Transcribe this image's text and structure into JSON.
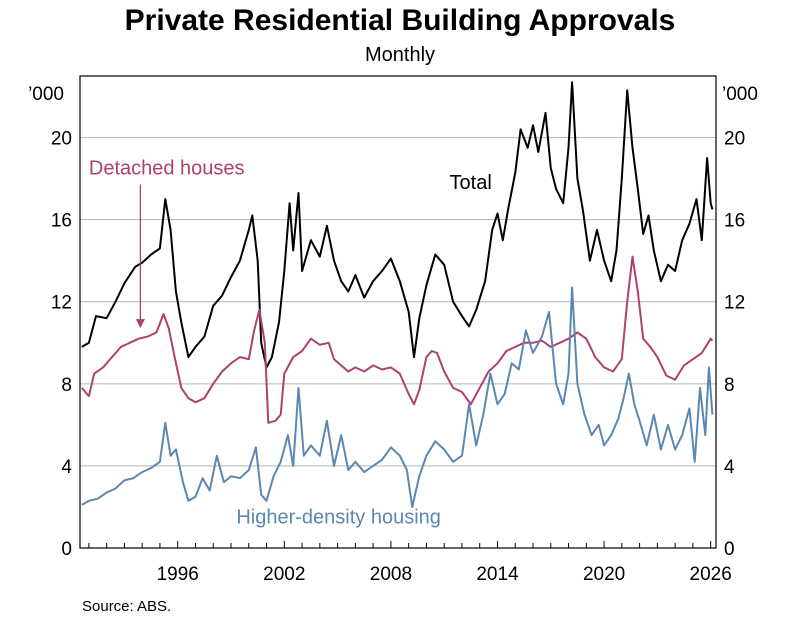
{
  "title": "Private Residential Building Approvals",
  "subtitle": "Monthly",
  "source": "Source:   ABS.",
  "chart_data": {
    "type": "line",
    "title": "Private Residential Building Approvals",
    "subtitle": "Monthly",
    "unit_left": "’000",
    "unit_right": "’000",
    "xlim": [
      1990.5,
      2026.3
    ],
    "ylim": [
      0,
      23
    ],
    "yticks": [
      0,
      4,
      8,
      12,
      16,
      20
    ],
    "xticks": [
      1996,
      2002,
      2008,
      2014,
      2020,
      2026
    ],
    "grid": true,
    "legend": "inline-labels",
    "series": [
      {
        "name": "Total",
        "color": "#000000",
        "label_x": 2011.3,
        "label_y": 17.5,
        "points": [
          [
            1990.6,
            9.8
          ],
          [
            1991.0,
            10.0
          ],
          [
            1991.4,
            11.3
          ],
          [
            1992.0,
            11.2
          ],
          [
            1992.5,
            12.0
          ],
          [
            1993.0,
            12.9
          ],
          [
            1993.6,
            13.7
          ],
          [
            1994.0,
            13.9
          ],
          [
            1994.5,
            14.3
          ],
          [
            1995.0,
            14.6
          ],
          [
            1995.3,
            17.0
          ],
          [
            1995.6,
            15.5
          ],
          [
            1995.9,
            12.5
          ],
          [
            1996.2,
            11.0
          ],
          [
            1996.6,
            9.3
          ],
          [
            1997.0,
            9.8
          ],
          [
            1997.5,
            10.3
          ],
          [
            1998.0,
            11.8
          ],
          [
            1998.5,
            12.3
          ],
          [
            1999.0,
            13.2
          ],
          [
            1999.5,
            14.0
          ],
          [
            2000.0,
            15.5
          ],
          [
            2000.2,
            16.2
          ],
          [
            2000.5,
            14.0
          ],
          [
            2000.7,
            10.0
          ],
          [
            2001.0,
            8.8
          ],
          [
            2001.3,
            9.3
          ],
          [
            2001.7,
            11.0
          ],
          [
            2002.0,
            13.5
          ],
          [
            2002.3,
            16.8
          ],
          [
            2002.5,
            14.5
          ],
          [
            2002.8,
            17.3
          ],
          [
            2003.0,
            13.5
          ],
          [
            2003.5,
            15.0
          ],
          [
            2004.0,
            14.2
          ],
          [
            2004.4,
            15.7
          ],
          [
            2004.8,
            14.0
          ],
          [
            2005.2,
            13.0
          ],
          [
            2005.6,
            12.5
          ],
          [
            2006.0,
            13.3
          ],
          [
            2006.5,
            12.2
          ],
          [
            2007.0,
            13.0
          ],
          [
            2007.5,
            13.5
          ],
          [
            2008.0,
            14.1
          ],
          [
            2008.5,
            13.0
          ],
          [
            2009.0,
            11.5
          ],
          [
            2009.3,
            9.3
          ],
          [
            2009.6,
            11.2
          ],
          [
            2010.0,
            12.8
          ],
          [
            2010.5,
            14.3
          ],
          [
            2011.0,
            13.8
          ],
          [
            2011.5,
            12.0
          ],
          [
            2012.0,
            11.3
          ],
          [
            2012.4,
            10.8
          ],
          [
            2012.8,
            11.6
          ],
          [
            2013.3,
            13.0
          ],
          [
            2013.7,
            15.5
          ],
          [
            2014.0,
            16.3
          ],
          [
            2014.3,
            15.0
          ],
          [
            2014.6,
            16.5
          ],
          [
            2015.0,
            18.3
          ],
          [
            2015.3,
            20.4
          ],
          [
            2015.7,
            19.5
          ],
          [
            2016.0,
            20.6
          ],
          [
            2016.3,
            19.3
          ],
          [
            2016.7,
            21.2
          ],
          [
            2017.0,
            18.5
          ],
          [
            2017.3,
            17.5
          ],
          [
            2017.7,
            16.8
          ],
          [
            2018.0,
            19.5
          ],
          [
            2018.2,
            22.7
          ],
          [
            2018.5,
            18.0
          ],
          [
            2018.8,
            16.5
          ],
          [
            2019.2,
            14.0
          ],
          [
            2019.6,
            15.5
          ],
          [
            2020.0,
            14.0
          ],
          [
            2020.4,
            13.0
          ],
          [
            2020.7,
            14.5
          ],
          [
            2021.0,
            18.0
          ],
          [
            2021.3,
            22.3
          ],
          [
            2021.6,
            19.5
          ],
          [
            2021.9,
            17.5
          ],
          [
            2022.2,
            15.3
          ],
          [
            2022.5,
            16.2
          ],
          [
            2022.8,
            14.5
          ],
          [
            2023.2,
            13.0
          ],
          [
            2023.6,
            13.8
          ],
          [
            2024.0,
            13.5
          ],
          [
            2024.4,
            15.0
          ],
          [
            2024.8,
            15.8
          ],
          [
            2025.2,
            17.0
          ],
          [
            2025.5,
            15.0
          ],
          [
            2025.8,
            19.0
          ],
          [
            2026.0,
            16.8
          ],
          [
            2026.1,
            16.5
          ]
        ]
      },
      {
        "name": "Detached houses",
        "color": "#b0406f",
        "label_x": 1991.0,
        "label_y": 18.2,
        "arrow_x": 1993.9,
        "arrow_y": 10.8,
        "points": [
          [
            1990.6,
            7.8
          ],
          [
            1991.0,
            7.4
          ],
          [
            1991.3,
            8.5
          ],
          [
            1991.8,
            8.8
          ],
          [
            1992.3,
            9.3
          ],
          [
            1992.8,
            9.8
          ],
          [
            1993.3,
            10.0
          ],
          [
            1993.8,
            10.2
          ],
          [
            1994.3,
            10.3
          ],
          [
            1994.8,
            10.5
          ],
          [
            1995.2,
            11.4
          ],
          [
            1995.5,
            10.7
          ],
          [
            1995.8,
            9.4
          ],
          [
            1996.2,
            7.8
          ],
          [
            1996.6,
            7.3
          ],
          [
            1997.0,
            7.1
          ],
          [
            1997.5,
            7.3
          ],
          [
            1998.0,
            8.0
          ],
          [
            1998.5,
            8.6
          ],
          [
            1999.0,
            9.0
          ],
          [
            1999.5,
            9.3
          ],
          [
            2000.0,
            9.2
          ],
          [
            2000.3,
            10.6
          ],
          [
            2000.6,
            11.6
          ],
          [
            2000.9,
            10.0
          ],
          [
            2001.1,
            6.1
          ],
          [
            2001.5,
            6.2
          ],
          [
            2001.8,
            6.5
          ],
          [
            2002.0,
            8.5
          ],
          [
            2002.5,
            9.3
          ],
          [
            2003.0,
            9.6
          ],
          [
            2003.5,
            10.2
          ],
          [
            2004.0,
            9.9
          ],
          [
            2004.5,
            10.0
          ],
          [
            2004.8,
            9.2
          ],
          [
            2005.2,
            8.9
          ],
          [
            2005.6,
            8.6
          ],
          [
            2006.0,
            8.8
          ],
          [
            2006.5,
            8.6
          ],
          [
            2007.0,
            8.9
          ],
          [
            2007.5,
            8.7
          ],
          [
            2008.0,
            8.8
          ],
          [
            2008.5,
            8.5
          ],
          [
            2009.0,
            7.5
          ],
          [
            2009.3,
            7.0
          ],
          [
            2009.6,
            7.7
          ],
          [
            2010.0,
            9.3
          ],
          [
            2010.3,
            9.6
          ],
          [
            2010.6,
            9.5
          ],
          [
            2011.0,
            8.6
          ],
          [
            2011.5,
            7.8
          ],
          [
            2012.0,
            7.6
          ],
          [
            2012.5,
            7.0
          ],
          [
            2013.0,
            7.8
          ],
          [
            2013.5,
            8.6
          ],
          [
            2014.0,
            9.0
          ],
          [
            2014.5,
            9.6
          ],
          [
            2015.0,
            9.8
          ],
          [
            2015.5,
            10.0
          ],
          [
            2016.0,
            10.0
          ],
          [
            2016.5,
            10.1
          ],
          [
            2017.0,
            9.8
          ],
          [
            2017.5,
            10.0
          ],
          [
            2018.0,
            10.2
          ],
          [
            2018.5,
            10.5
          ],
          [
            2019.0,
            10.2
          ],
          [
            2019.5,
            9.3
          ],
          [
            2020.0,
            8.8
          ],
          [
            2020.5,
            8.6
          ],
          [
            2021.0,
            9.2
          ],
          [
            2021.3,
            12.0
          ],
          [
            2021.6,
            14.2
          ],
          [
            2021.9,
            12.5
          ],
          [
            2022.2,
            10.2
          ],
          [
            2022.6,
            9.8
          ],
          [
            2023.0,
            9.3
          ],
          [
            2023.5,
            8.4
          ],
          [
            2024.0,
            8.2
          ],
          [
            2024.5,
            8.9
          ],
          [
            2025.0,
            9.2
          ],
          [
            2025.5,
            9.5
          ],
          [
            2026.0,
            10.2
          ],
          [
            2026.1,
            10.1
          ]
        ]
      },
      {
        "name": "Higher-density housing",
        "color": "#5b87b2",
        "label_x": 1999.3,
        "label_y": 1.2,
        "points": [
          [
            1990.6,
            2.1
          ],
          [
            1991.0,
            2.3
          ],
          [
            1991.5,
            2.4
          ],
          [
            1992.0,
            2.7
          ],
          [
            1992.5,
            2.9
          ],
          [
            1993.0,
            3.3
          ],
          [
            1993.5,
            3.4
          ],
          [
            1994.0,
            3.7
          ],
          [
            1994.5,
            3.9
          ],
          [
            1995.0,
            4.2
          ],
          [
            1995.3,
            6.1
          ],
          [
            1995.6,
            4.5
          ],
          [
            1995.9,
            4.8
          ],
          [
            1996.3,
            3.2
          ],
          [
            1996.6,
            2.3
          ],
          [
            1997.0,
            2.5
          ],
          [
            1997.4,
            3.4
          ],
          [
            1997.8,
            2.8
          ],
          [
            1998.2,
            4.5
          ],
          [
            1998.6,
            3.2
          ],
          [
            1999.0,
            3.5
          ],
          [
            1999.5,
            3.4
          ],
          [
            2000.0,
            3.8
          ],
          [
            2000.4,
            4.9
          ],
          [
            2000.7,
            2.6
          ],
          [
            2001.0,
            2.3
          ],
          [
            2001.4,
            3.5
          ],
          [
            2001.8,
            4.2
          ],
          [
            2002.2,
            5.5
          ],
          [
            2002.5,
            4.0
          ],
          [
            2002.8,
            7.8
          ],
          [
            2003.1,
            4.5
          ],
          [
            2003.5,
            5.0
          ],
          [
            2004.0,
            4.5
          ],
          [
            2004.4,
            6.2
          ],
          [
            2004.8,
            4.0
          ],
          [
            2005.2,
            5.5
          ],
          [
            2005.6,
            3.8
          ],
          [
            2006.0,
            4.2
          ],
          [
            2006.5,
            3.7
          ],
          [
            2007.0,
            4.0
          ],
          [
            2007.5,
            4.3
          ],
          [
            2008.0,
            4.9
          ],
          [
            2008.5,
            4.5
          ],
          [
            2008.9,
            3.8
          ],
          [
            2009.2,
            2.0
          ],
          [
            2009.6,
            3.5
          ],
          [
            2010.0,
            4.5
          ],
          [
            2010.5,
            5.2
          ],
          [
            2011.0,
            4.8
          ],
          [
            2011.5,
            4.2
          ],
          [
            2012.0,
            4.5
          ],
          [
            2012.4,
            7.0
          ],
          [
            2012.8,
            5.0
          ],
          [
            2013.2,
            6.5
          ],
          [
            2013.6,
            8.5
          ],
          [
            2014.0,
            7.0
          ],
          [
            2014.4,
            7.5
          ],
          [
            2014.8,
            9.0
          ],
          [
            2015.2,
            8.7
          ],
          [
            2015.6,
            10.6
          ],
          [
            2016.0,
            9.5
          ],
          [
            2016.5,
            10.3
          ],
          [
            2016.9,
            11.5
          ],
          [
            2017.3,
            8.0
          ],
          [
            2017.7,
            7.0
          ],
          [
            2018.0,
            8.5
          ],
          [
            2018.2,
            12.7
          ],
          [
            2018.5,
            8.0
          ],
          [
            2018.9,
            6.5
          ],
          [
            2019.3,
            5.5
          ],
          [
            2019.7,
            6.0
          ],
          [
            2020.0,
            5.0
          ],
          [
            2020.4,
            5.5
          ],
          [
            2020.8,
            6.3
          ],
          [
            2021.1,
            7.3
          ],
          [
            2021.4,
            8.5
          ],
          [
            2021.7,
            7.0
          ],
          [
            2022.0,
            6.2
          ],
          [
            2022.4,
            5.0
          ],
          [
            2022.8,
            6.5
          ],
          [
            2023.2,
            4.8
          ],
          [
            2023.6,
            6.0
          ],
          [
            2024.0,
            4.8
          ],
          [
            2024.4,
            5.5
          ],
          [
            2024.8,
            6.8
          ],
          [
            2025.1,
            4.2
          ],
          [
            2025.4,
            7.8
          ],
          [
            2025.7,
            5.5
          ],
          [
            2025.9,
            8.8
          ],
          [
            2026.1,
            6.5
          ]
        ]
      }
    ]
  }
}
